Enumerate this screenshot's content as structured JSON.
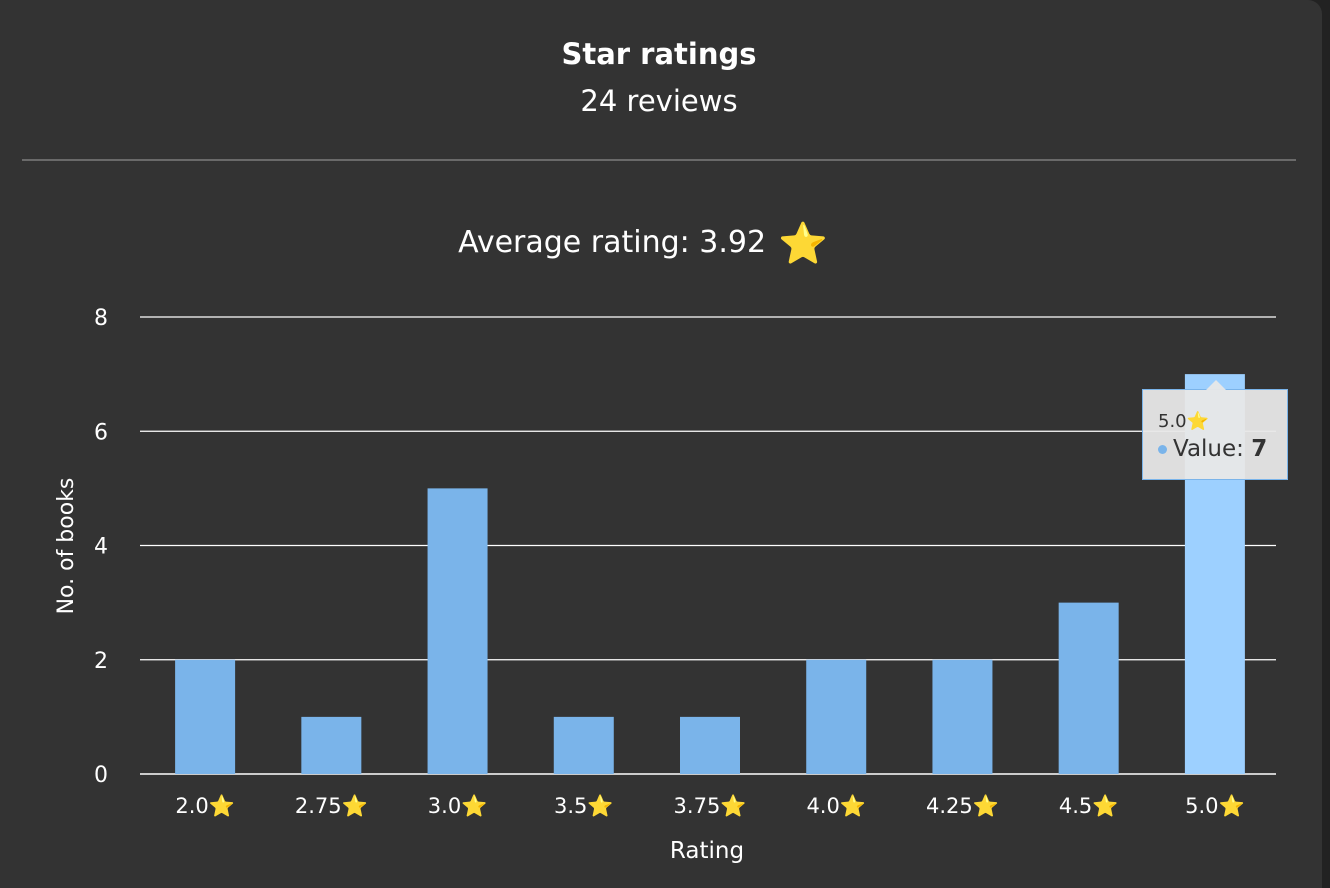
{
  "header": {
    "title": "Star ratings",
    "subtitle": "24 reviews"
  },
  "average": {
    "text": "Average rating: 3.92",
    "icon": "star-icon",
    "icon_glyph": "⭐"
  },
  "colors": {
    "bar": "#7ab4ea",
    "bar_highlight": "#9dd0ff",
    "grid": "#ffffff",
    "text": "#ffffff",
    "background": "#333333"
  },
  "chart_data": {
    "type": "bar",
    "categories": [
      "2.0⭐",
      "2.75⭐",
      "3.0⭐",
      "3.5⭐",
      "3.75⭐",
      "4.0⭐",
      "4.25⭐",
      "4.5⭐",
      "5.0⭐"
    ],
    "values": [
      2,
      1,
      5,
      1,
      1,
      2,
      2,
      3,
      7
    ],
    "xlabel": "Rating",
    "ylabel": "No. of books",
    "ylim": [
      0,
      8
    ],
    "yticks": [
      "0",
      "2",
      "4",
      "6",
      "8"
    ],
    "grid": true,
    "highlighted_category": "5.0⭐"
  },
  "tooltip": {
    "header": "5.0⭐",
    "label": "Value: ",
    "value": "7"
  }
}
